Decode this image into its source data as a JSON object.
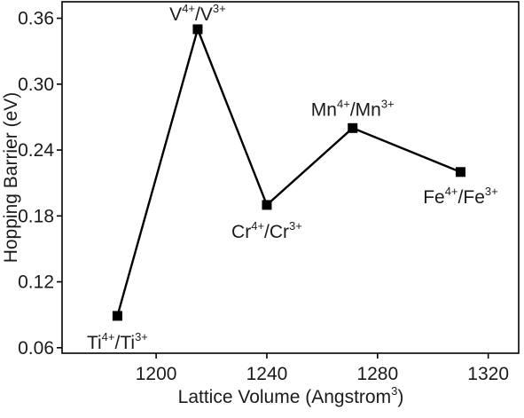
{
  "chart_data": {
    "type": "line",
    "xlabel": "Lattice Volume (Angstrom",
    "xlabel_sup": "3",
    "xlabel_close": ")",
    "ylabel": "Hopping Barrier (eV)",
    "xlim": [
      1166,
      1331
    ],
    "ylim": [
      0.055,
      0.375
    ],
    "xticks": [
      1200,
      1240,
      1280,
      1320
    ],
    "xtick_labels": [
      "1200",
      "1240",
      "1280",
      "1320"
    ],
    "yticks": [
      0.06,
      0.12,
      0.18,
      0.24,
      0.3,
      0.36
    ],
    "ytick_labels": [
      "0.06",
      "0.12",
      "0.18",
      "0.24",
      "0.30",
      "0.36"
    ],
    "grid": false,
    "line_color": "#000000",
    "marker": "square",
    "points": [
      {
        "x": 1186,
        "y": 0.089,
        "label": "Ti",
        "sup1": "4+",
        "sep": "/Ti",
        "sup2": "3+"
      },
      {
        "x": 1215,
        "y": 0.35,
        "label": "V",
        "sup1": "4+",
        "sep": "/V",
        "sup2": "3+"
      },
      {
        "x": 1240,
        "y": 0.19,
        "label": "Cr",
        "sup1": "4+",
        "sep": "/Cr",
        "sup2": "3+"
      },
      {
        "x": 1271,
        "y": 0.26,
        "label": "Mn",
        "sup1": "4+",
        "sep": "/Mn",
        "sup2": "3+"
      },
      {
        "x": 1310,
        "y": 0.22,
        "label": "Fe",
        "sup1": "4+",
        "sep": "/Fe",
        "sup2": "3+"
      }
    ]
  }
}
